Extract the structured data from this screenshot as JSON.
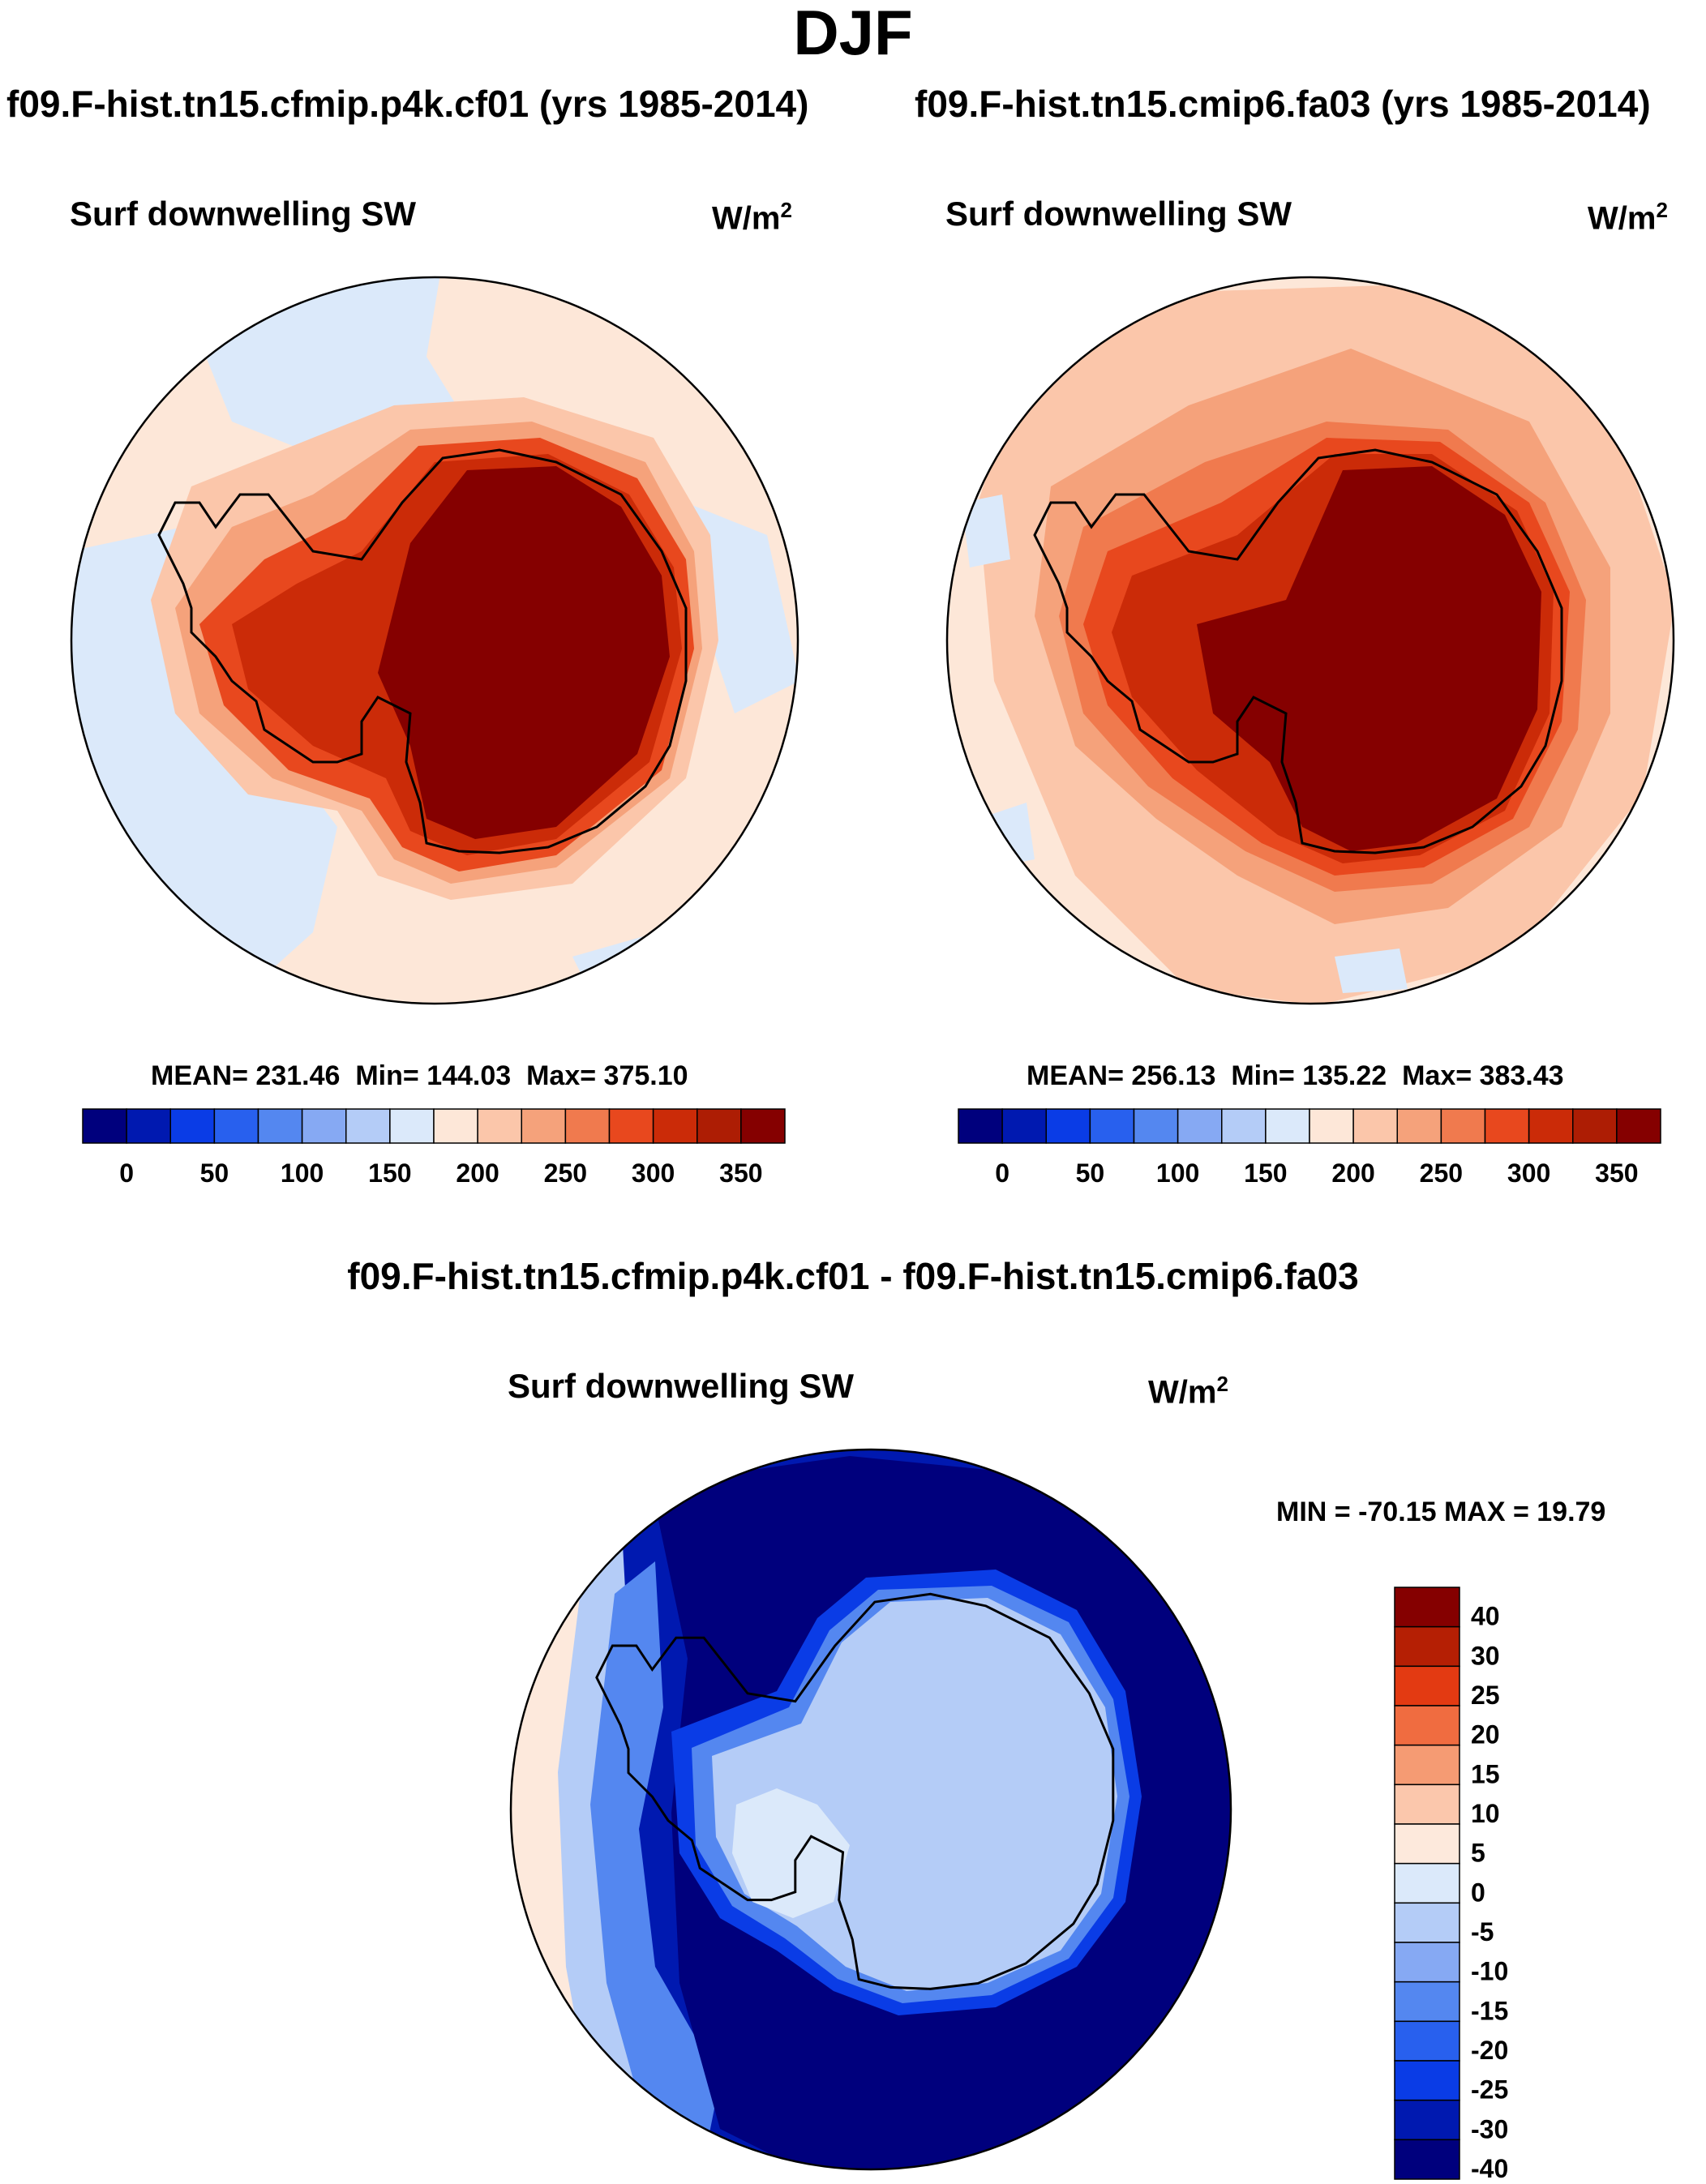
{
  "figure": {
    "title": "DJF",
    "var_label": "Surf downwelling SW",
    "unit_text": "W/m",
    "unit_sup": "2"
  },
  "panels": {
    "left": {
      "title": "f09.F-hist.tn15.cfmip.p4k.cf01 (yrs 1985-2014)",
      "mean": "231.46",
      "min": "144.03",
      "max": "375.10"
    },
    "right": {
      "title": "f09.F-hist.tn15.cmip6.fa03 (yrs 1985-2014)",
      "mean": "256.13",
      "min": "135.22",
      "max": "383.43"
    },
    "diff": {
      "title": "f09.F-hist.tn15.cfmip.p4k.cf01 - f09.F-hist.tn15.cmip6.fa03",
      "min": "-70.15",
      "max": "19.79"
    }
  },
  "labels": {
    "mean_prefix": "MEAN=",
    "min_prefix": "Min=",
    "max_prefix": "Max=",
    "diff_min_prefix": "MIN =",
    "diff_max_prefix": "MAX ="
  },
  "chart_data": [
    {
      "type": "heatmap",
      "title": "f09.F-hist.tn15.cfmip.p4k.cf01 (yrs 1985-2014)",
      "variable": "Surf downwelling SW",
      "units": "W/m2",
      "projection": "south polar stereographic",
      "stats": {
        "mean": 231.46,
        "min": 144.03,
        "max": 375.1
      },
      "colorbar": {
        "orientation": "horizontal",
        "tick_labels": [
          "0",
          "50",
          "100",
          "150",
          "200",
          "250",
          "300",
          "350"
        ],
        "levels": [
          0,
          25,
          50,
          75,
          100,
          125,
          150,
          175,
          200,
          225,
          250,
          275,
          300,
          325,
          350
        ],
        "colors": [
          "#00007d",
          "#0019b0",
          "#0a3ce6",
          "#2860ee",
          "#5487f0",
          "#86a9f3",
          "#b4ccf7",
          "#dbe9fa",
          "#fde7d8",
          "#fbc6aa",
          "#f5a27b",
          "#f07a4e",
          "#e8481e",
          "#cb2b08",
          "#ad1d04",
          "#850000"
        ]
      }
    },
    {
      "type": "heatmap",
      "title": "f09.F-hist.tn15.cmip6.fa03 (yrs 1985-2014)",
      "variable": "Surf downwelling SW",
      "units": "W/m2",
      "projection": "south polar stereographic",
      "stats": {
        "mean": 256.13,
        "min": 135.22,
        "max": 383.43
      },
      "colorbar": {
        "orientation": "horizontal",
        "tick_labels": [
          "0",
          "50",
          "100",
          "150",
          "200",
          "250",
          "300",
          "350"
        ],
        "levels": [
          0,
          25,
          50,
          75,
          100,
          125,
          150,
          175,
          200,
          225,
          250,
          275,
          300,
          325,
          350
        ],
        "colors": [
          "#00007d",
          "#0019b0",
          "#0a3ce6",
          "#2860ee",
          "#5487f0",
          "#86a9f3",
          "#b4ccf7",
          "#dbe9fa",
          "#fde7d8",
          "#fbc6aa",
          "#f5a27b",
          "#f07a4e",
          "#e8481e",
          "#cb2b08",
          "#ad1d04",
          "#850000"
        ]
      }
    },
    {
      "type": "heatmap",
      "title": "f09.F-hist.tn15.cfmip.p4k.cf01 - f09.F-hist.tn15.cmip6.fa03",
      "variable": "Surf downwelling SW",
      "units": "W/m2",
      "projection": "south polar stereographic",
      "stats": {
        "min": -70.15,
        "max": 19.79
      },
      "colorbar": {
        "orientation": "vertical",
        "tick_labels": [
          "40",
          "30",
          "25",
          "20",
          "15",
          "10",
          "5",
          "0",
          "-5",
          "-10",
          "-15",
          "-20",
          "-25",
          "-30",
          "-40"
        ],
        "colors": [
          "#850000",
          "#b51f04",
          "#e33a12",
          "#f06c40",
          "#f59b73",
          "#fbc7ac",
          "#fde9dc",
          "#dbe9fa",
          "#b4ccf7",
          "#86a9f3",
          "#5487f0",
          "#2860ee",
          "#0a3ce6",
          "#0019b0",
          "#00007d"
        ]
      }
    }
  ]
}
